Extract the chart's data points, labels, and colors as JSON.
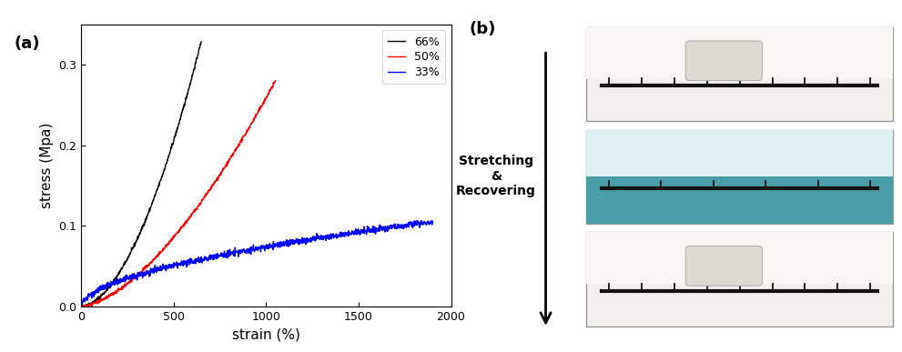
{
  "title_a": "(a)",
  "title_b": "(b)",
  "xlabel": "strain (%)",
  "ylabel": "stress (Mpa)",
  "xlim": [
    0,
    2000
  ],
  "ylim": [
    0,
    0.35
  ],
  "yticks": [
    0.0,
    0.1,
    0.2,
    0.3
  ],
  "xticks": [
    0,
    500,
    1000,
    1500,
    2000
  ],
  "legend_labels": [
    "66%",
    "50%",
    "33%"
  ],
  "line_colors": [
    "black",
    "red",
    "blue"
  ],
  "curve66_strain_max": 650,
  "curve66_stress_max": 0.33,
  "curve50_strain_max": 1050,
  "curve50_stress_max": 0.28,
  "curve33_strain_max": 1900,
  "curve33_stress_max": 0.105,
  "arrow_label": "Stretching\n&\nRecovering",
  "bg_color": "#ffffff",
  "fig_width": 9.91,
  "fig_height": 3.87
}
